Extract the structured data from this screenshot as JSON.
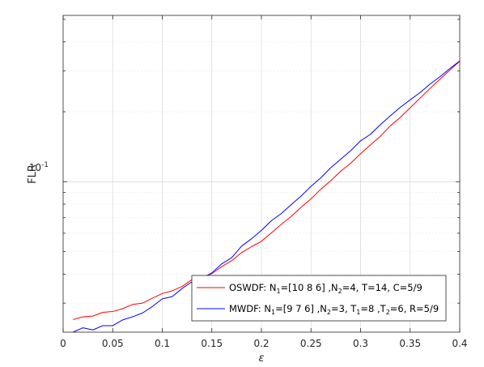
{
  "chart_data": {
    "type": "line",
    "title": "",
    "xlabel": "ε",
    "ylabel": "FLR",
    "xlim": [
      0,
      0.4
    ],
    "ylim": [
      0.0225,
      0.52
    ],
    "yscale": "log",
    "grid": true,
    "x_ticks": [
      0,
      0.05,
      0.1,
      0.15,
      0.2,
      0.25,
      0.3,
      0.35,
      0.4
    ],
    "x_tick_labels": [
      "0",
      "0.05",
      "0.1",
      "0.15",
      "0.2",
      "0.25",
      "0.3",
      "0.35",
      "0.4"
    ],
    "y_major_ticks": [
      0.1
    ],
    "y_tick_label": {
      "base": "10",
      "exponent": "-1"
    },
    "legend_position": "bottom-right",
    "series": [
      {
        "name": "OSWDF",
        "legend": {
          "pre": "OSWDF: N",
          "sub1": "1",
          "mid1": "=[10 8 6] ,N",
          "sub2": "2",
          "post": "=4, T=14, C=5/9"
        },
        "color": "#ff0000",
        "x": [
          0.01,
          0.02,
          0.03,
          0.04,
          0.05,
          0.06,
          0.07,
          0.08,
          0.09,
          0.1,
          0.11,
          0.12,
          0.13,
          0.14,
          0.15,
          0.16,
          0.17,
          0.18,
          0.19,
          0.2,
          0.21,
          0.22,
          0.23,
          0.24,
          0.25,
          0.26,
          0.27,
          0.28,
          0.29,
          0.3,
          0.31,
          0.32,
          0.33,
          0.34,
          0.35,
          0.36,
          0.37,
          0.38,
          0.39,
          0.4
        ],
        "y": [
          0.0255,
          0.0262,
          0.0264,
          0.0274,
          0.0276,
          0.0284,
          0.0296,
          0.03,
          0.0315,
          0.033,
          0.0339,
          0.0354,
          0.0379,
          0.0388,
          0.0402,
          0.0431,
          0.0457,
          0.0495,
          0.0525,
          0.0554,
          0.0602,
          0.0655,
          0.0708,
          0.0776,
          0.0843,
          0.0929,
          0.101,
          0.111,
          0.1201,
          0.132,
          0.144,
          0.157,
          0.174,
          0.189,
          0.208,
          0.229,
          0.252,
          0.276,
          0.302,
          0.33
        ]
      },
      {
        "name": "MWDF",
        "legend": {
          "pre": "MWDF: N",
          "sub1": "1",
          "mid1": "=[9 7 6] ,N",
          "sub2": "2",
          "mid2": "=3, T",
          "sub3": "1",
          "mid3": "=8 ,T",
          "sub4": "2",
          "post": "=6, R=5/9"
        },
        "color": "#0000ff",
        "x": [
          0.01,
          0.02,
          0.03,
          0.04,
          0.05,
          0.06,
          0.07,
          0.08,
          0.09,
          0.1,
          0.11,
          0.12,
          0.13,
          0.14,
          0.15,
          0.16,
          0.17,
          0.18,
          0.19,
          0.2,
          0.21,
          0.22,
          0.23,
          0.24,
          0.25,
          0.26,
          0.27,
          0.28,
          0.29,
          0.3,
          0.31,
          0.32,
          0.33,
          0.34,
          0.35,
          0.36,
          0.37,
          0.38,
          0.39,
          0.4
        ],
        "y": [
          0.0225,
          0.0235,
          0.023,
          0.024,
          0.024,
          0.0254,
          0.0262,
          0.0272,
          0.029,
          0.0313,
          0.032,
          0.0347,
          0.0371,
          0.0383,
          0.0405,
          0.0443,
          0.0471,
          0.0528,
          0.0568,
          0.0617,
          0.0679,
          0.0729,
          0.0796,
          0.0867,
          0.0955,
          0.104,
          0.115,
          0.125,
          0.136,
          0.15,
          0.16,
          0.176,
          0.192,
          0.209,
          0.225,
          0.242,
          0.263,
          0.283,
          0.307,
          0.331
        ]
      }
    ]
  }
}
